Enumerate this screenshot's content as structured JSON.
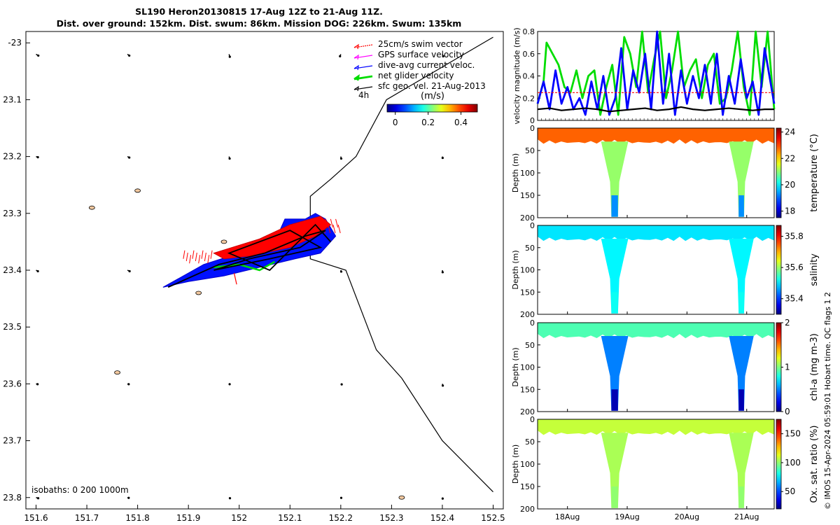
{
  "title": {
    "line1": "SL190 Heron20130815 17-Aug 12Z to 21-Aug 11Z.",
    "line2": "Dist. over ground: 152km. Dist. swum: 86km. Mission DOG: 226km. Swum: 135km"
  },
  "colors": {
    "swim": "#ff0000",
    "gps": "#ff00ff",
    "dive_avg": "#0000ff",
    "net_glider": "#00dd00",
    "sfc_geo": "#000000"
  },
  "chart_data": [
    {
      "type": "scatter",
      "name": "glider-track-map",
      "xlim": [
        151.58,
        152.52
      ],
      "ylim": [
        -23.82,
        -22.98
      ],
      "x_ticks": [
        151.6,
        151.7,
        151.8,
        151.9,
        152.0,
        152.1,
        152.2,
        152.3,
        152.4,
        152.5
      ],
      "x_tick_labels": [
        "151.6",
        "151.7",
        "151.8",
        "151.9",
        "152",
        "152.1",
        "152.2",
        "152.3",
        "152.4",
        "152.5"
      ],
      "y_ticks": [
        -23.0,
        -23.1,
        -23.2,
        -23.3,
        -23.4,
        -23.5,
        -23.6,
        -23.7,
        -23.8
      ],
      "y_tick_labels": [
        "-23",
        "23.1",
        "23.2",
        "23.3",
        "23.4",
        "23.5",
        "23.6",
        "23.7",
        "23.8"
      ],
      "legend": {
        "placement": "top-right",
        "entries": [
          {
            "label": "25cm/s swim vector",
            "color": "#ff0000"
          },
          {
            "label": "GPS surface velocity",
            "color": "#ff00ff"
          },
          {
            "label": "dive-avg current veloc.",
            "color": "#0000ff"
          },
          {
            "label": "net glider velocity",
            "color": "#00dd00"
          },
          {
            "label": "sfc geo. vel. 21-Aug-2013",
            "color": "#000000"
          }
        ],
        "time_scale_label": "4h"
      },
      "colorbar": {
        "label": "(m/s)",
        "range": [
          -0.05,
          0.5
        ],
        "ticks": [
          0,
          0.2,
          0.4
        ],
        "tick_labels": [
          "0",
          "0.2",
          "0.4"
        ]
      },
      "isobaths_label": "isobaths: 0   200  1000m",
      "isobath_line": [
        [
          152.5,
          -22.99
        ],
        [
          152.29,
          -23.1
        ],
        [
          152.23,
          -23.2
        ],
        [
          152.18,
          -23.24
        ],
        [
          152.14,
          -23.27
        ],
        [
          152.14,
          -23.38
        ],
        [
          152.21,
          -23.4
        ],
        [
          152.27,
          -23.54
        ],
        [
          152.32,
          -23.59
        ],
        [
          152.4,
          -23.7
        ],
        [
          152.5,
          -23.79
        ]
      ],
      "track": [
        [
          151.86,
          -23.43
        ],
        [
          151.96,
          -23.39
        ],
        [
          152.05,
          -23.37
        ],
        [
          152.13,
          -23.34
        ],
        [
          152.17,
          -23.33
        ],
        [
          152.12,
          -23.36
        ],
        [
          152.02,
          -23.38
        ],
        [
          151.95,
          -23.4
        ],
        [
          152.06,
          -23.38
        ],
        [
          152.16,
          -23.36
        ],
        [
          152.1,
          -23.33
        ],
        [
          151.98,
          -23.37
        ],
        [
          152.06,
          -23.4
        ],
        [
          152.15,
          -23.32
        ],
        [
          152.18,
          -23.35
        ]
      ],
      "islands": [
        [
          151.71,
          -23.29
        ],
        [
          151.8,
          -23.26
        ],
        [
          151.76,
          -23.58
        ],
        [
          151.92,
          -23.44
        ],
        [
          151.97,
          -23.35
        ],
        [
          152.32,
          -23.8
        ]
      ],
      "geo_vectors": [
        [
          151.6,
          -23.02,
          0.015,
          0.008
        ],
        [
          151.78,
          -23.02,
          0.012,
          0.008
        ],
        [
          151.98,
          -23.02,
          0.005,
          0.015
        ],
        [
          152.2,
          -23.02,
          -0.005,
          0.012
        ],
        [
          152.4,
          -23.02,
          0.006,
          0.012
        ],
        [
          151.6,
          -23.2,
          0.012,
          0.004
        ],
        [
          151.78,
          -23.2,
          0.012,
          0.006
        ],
        [
          151.98,
          -23.2,
          0.004,
          0.012
        ],
        [
          152.2,
          -23.2,
          0.003,
          0.012
        ],
        [
          152.4,
          -23.2,
          0.002,
          0.008
        ],
        [
          151.6,
          -23.4,
          0.012,
          0.006
        ],
        [
          151.78,
          -23.4,
          0.014,
          0.006
        ],
        [
          151.98,
          -23.4,
          0.006,
          0.012
        ],
        [
          152.2,
          -23.4,
          0.003,
          0.008
        ],
        [
          152.4,
          -23.4,
          0.002,
          0.012
        ],
        [
          151.6,
          -23.6,
          0.01,
          0.002
        ],
        [
          151.78,
          -23.6,
          0.008,
          0.002
        ],
        [
          151.98,
          -23.6,
          0.004,
          0.002
        ],
        [
          152.2,
          -23.6,
          0.006,
          0.003
        ],
        [
          152.4,
          -23.6,
          0.003,
          0.01
        ],
        [
          151.6,
          -23.8,
          0.014,
          0.004
        ],
        [
          151.78,
          -23.8,
          0.008,
          0.002
        ],
        [
          151.98,
          -23.8,
          0.006,
          0.004
        ],
        [
          152.2,
          -23.8,
          0.003,
          0.002
        ],
        [
          152.4,
          -23.8,
          0.002,
          0.006
        ]
      ]
    },
    {
      "type": "line",
      "name": "velocity-magnitude",
      "ylabel": "velocity magnitude (m/s)",
      "ylim": [
        0,
        0.8
      ],
      "y_ticks": [
        0,
        0.2,
        0.4,
        0.6,
        0.8
      ],
      "y_tick_labels": [
        "0",
        "0.2",
        "0.4",
        "0.6",
        "0.8"
      ],
      "xlim": [
        17.5,
        21.46
      ],
      "series": [
        {
          "name": "net glider velocity",
          "color": "#00dd00",
          "x": [
            17.5,
            17.6,
            17.65,
            17.75,
            17.85,
            17.95,
            18.05,
            18.15,
            18.25,
            18.35,
            18.45,
            18.55,
            18.65,
            18.75,
            18.85,
            18.95,
            19.05,
            19.15,
            19.25,
            19.35,
            19.45,
            19.55,
            19.65,
            19.75,
            19.85,
            19.95,
            20.05,
            20.15,
            20.25,
            20.35,
            20.45,
            20.55,
            20.65,
            20.75,
            20.85,
            20.95,
            21.05,
            21.15,
            21.25,
            21.35,
            21.46
          ],
          "values": [
            0.15,
            0.35,
            0.7,
            0.6,
            0.5,
            0.3,
            0.25,
            0.45,
            0.2,
            0.4,
            0.45,
            0.05,
            0.3,
            0.5,
            0.05,
            0.75,
            0.6,
            0.3,
            0.8,
            0.25,
            0.55,
            0.8,
            0.2,
            0.45,
            0.8,
            0.3,
            0.45,
            0.55,
            0.2,
            0.5,
            0.6,
            0.15,
            0.2,
            0.45,
            0.8,
            0.3,
            0.05,
            0.8,
            0.3,
            0.8,
            0.1
          ]
        },
        {
          "name": "dive-avg current veloc.",
          "color": "#0000ff",
          "x": [
            17.5,
            17.6,
            17.7,
            17.8,
            17.9,
            18.0,
            18.1,
            18.2,
            18.3,
            18.4,
            18.5,
            18.6,
            18.7,
            18.8,
            18.9,
            19.0,
            19.1,
            19.2,
            19.3,
            19.4,
            19.5,
            19.6,
            19.7,
            19.8,
            19.9,
            20.0,
            20.1,
            20.2,
            20.3,
            20.4,
            20.5,
            20.6,
            20.7,
            20.8,
            20.9,
            21.0,
            21.1,
            21.2,
            21.3,
            21.46
          ],
          "values": [
            0.15,
            0.35,
            0.1,
            0.45,
            0.15,
            0.3,
            0.1,
            0.2,
            0.05,
            0.35,
            0.1,
            0.4,
            0.05,
            0.2,
            0.65,
            0.1,
            0.45,
            0.25,
            0.6,
            0.1,
            0.8,
            0.15,
            0.6,
            0.05,
            0.45,
            0.15,
            0.4,
            0.2,
            0.5,
            0.15,
            0.6,
            0.05,
            0.4,
            0.15,
            0.55,
            0.2,
            0.35,
            0.05,
            0.65,
            0.15
          ]
        },
        {
          "name": "25cm/s swim vector",
          "color": "#ff0000",
          "x": [
            17.5,
            21.46
          ],
          "values": [
            0.25,
            0.25
          ]
        },
        {
          "name": "sfc geo. vel.",
          "color": "#000000",
          "x": [
            17.5,
            17.7,
            17.9,
            18.1,
            18.3,
            18.5,
            18.7,
            18.9,
            19.1,
            19.3,
            19.5,
            19.7,
            19.9,
            20.1,
            20.3,
            20.5,
            20.7,
            20.9,
            21.1,
            21.3,
            21.46
          ],
          "values": [
            0.1,
            0.11,
            0.09,
            0.1,
            0.11,
            0.1,
            0.08,
            0.09,
            0.1,
            0.11,
            0.09,
            0.1,
            0.12,
            0.1,
            0.09,
            0.1,
            0.11,
            0.1,
            0.09,
            0.1,
            0.1
          ]
        }
      ]
    },
    {
      "type": "heatmap",
      "name": "temperature-section",
      "ylabel": "Depth (m)",
      "colorbar_label": "temperature (°C)",
      "ylim": [
        200,
        0
      ],
      "y_ticks": [
        0,
        50,
        100,
        150,
        200
      ],
      "y_tick_labels": [
        "0",
        "50",
        "100",
        "150",
        "200"
      ],
      "clim": [
        17.5,
        24.3
      ],
      "cbar_ticks": [
        18,
        20,
        22,
        24
      ],
      "cbar_tick_labels": [
        "18",
        "20",
        "22",
        "24"
      ],
      "surface_value": 22.8,
      "deep_value": 19.3
    },
    {
      "type": "heatmap",
      "name": "salinity-section",
      "ylabel": "Depth (m)",
      "colorbar_label": "salinity",
      "ylim": [
        200,
        0
      ],
      "y_ticks": [
        0,
        50,
        100,
        150,
        200
      ],
      "y_tick_labels": [
        "0",
        "50",
        "100",
        "150",
        "200"
      ],
      "clim": [
        35.3,
        35.87
      ],
      "cbar_ticks": [
        35.4,
        35.6,
        35.8
      ],
      "cbar_tick_labels": [
        "35.4",
        "35.6",
        "35.8"
      ],
      "surface_value": 35.5,
      "deep_value": 35.52
    },
    {
      "type": "heatmap",
      "name": "chlorophyll-section",
      "ylabel": "Depth (m)",
      "colorbar_label": "chl-a (mg m-3)",
      "ylim": [
        200,
        0
      ],
      "y_ticks": [
        0,
        50,
        100,
        150,
        200
      ],
      "y_tick_labels": [
        "0",
        "50",
        "100",
        "150",
        "200"
      ],
      "clim": [
        0,
        2
      ],
      "cbar_ticks": [
        0,
        1,
        2
      ],
      "cbar_tick_labels": [
        "0",
        "1",
        "2"
      ],
      "surface_value": 0.9,
      "deep_value": 0.1
    },
    {
      "type": "heatmap",
      "name": "oxygen-section",
      "ylabel": "Depth (m)",
      "colorbar_label": "Ox. sat. ratio (%)",
      "ylim": [
        200,
        0
      ],
      "y_ticks": [
        0,
        50,
        100,
        150,
        200
      ],
      "y_tick_labels": [
        "0",
        "50",
        "100",
        "150",
        "200"
      ],
      "clim": [
        20,
        175
      ],
      "cbar_ticks": [
        50,
        100,
        150
      ],
      "cbar_tick_labels": [
        "50",
        "100",
        "150"
      ],
      "surface_value": 108,
      "deep_value": 100
    }
  ],
  "time_axis": {
    "xlim": [
      17.5,
      21.46
    ],
    "ticks": [
      18,
      19,
      20,
      21
    ],
    "tick_labels": [
      "18Aug",
      "19Aug",
      "20Aug",
      "21Aug"
    ],
    "dive_events": [
      [
        18.68,
        18.9
      ],
      [
        20.82,
        21.0
      ]
    ]
  },
  "footer_note": "© IMOS 15-Apr-2024 05:59:01 Hobart time. QC flags 1  2"
}
